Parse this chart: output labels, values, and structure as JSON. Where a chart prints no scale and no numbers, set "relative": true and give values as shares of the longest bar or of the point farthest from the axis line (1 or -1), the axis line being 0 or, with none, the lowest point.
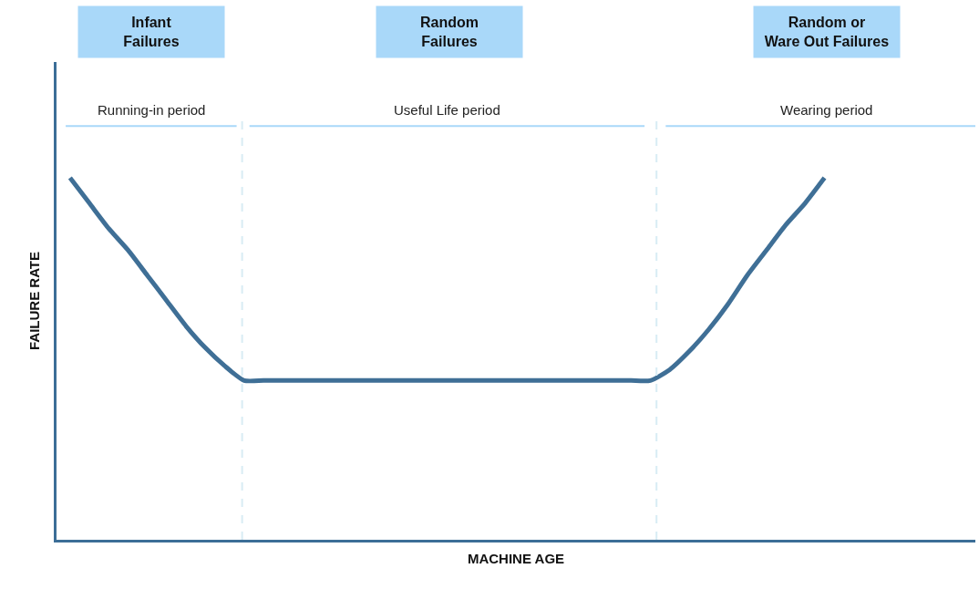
{
  "chart_data": {
    "type": "line",
    "relative": true,
    "xlabel": "MACHINE AGE",
    "ylabel": "FAILURE RATE",
    "categories": [
      null,
      null,
      null,
      null,
      null,
      null,
      null,
      null,
      null,
      null,
      null,
      null,
      null,
      null,
      null,
      null,
      null,
      null,
      null,
      null,
      null,
      null,
      null,
      null,
      null,
      null,
      null,
      null,
      null,
      null,
      null,
      null,
      null,
      null,
      null,
      null,
      null,
      null,
      null,
      null
    ],
    "series": [
      {
        "color": "#3f6f96",
        "values": [
          1,
          0.93,
          0.86,
          0.8,
          0.73,
          0.66,
          0.59,
          0.53,
          0.48,
          0.44,
          0.44,
          0.44,
          0.44,
          0.44,
          0.44,
          0.44,
          0.44,
          0.44,
          0.44,
          0.44,
          0.44,
          0.44,
          0.44,
          0.44,
          0.44,
          0.44,
          0.44,
          0.44,
          0.44,
          0.44,
          0.44,
          0.47,
          0.52,
          0.58,
          0.65,
          0.73,
          0.8,
          0.87,
          0.93,
          1
        ]
      }
    ],
    "annotations": [
      "Infant\nFailures",
      "Random\nFailures",
      "Random or\nWare Out Failures",
      "Running-in period",
      "Useful Life period",
      "Wearing period"
    ],
    "marker": "none",
    "line_style": "solid"
  }
}
